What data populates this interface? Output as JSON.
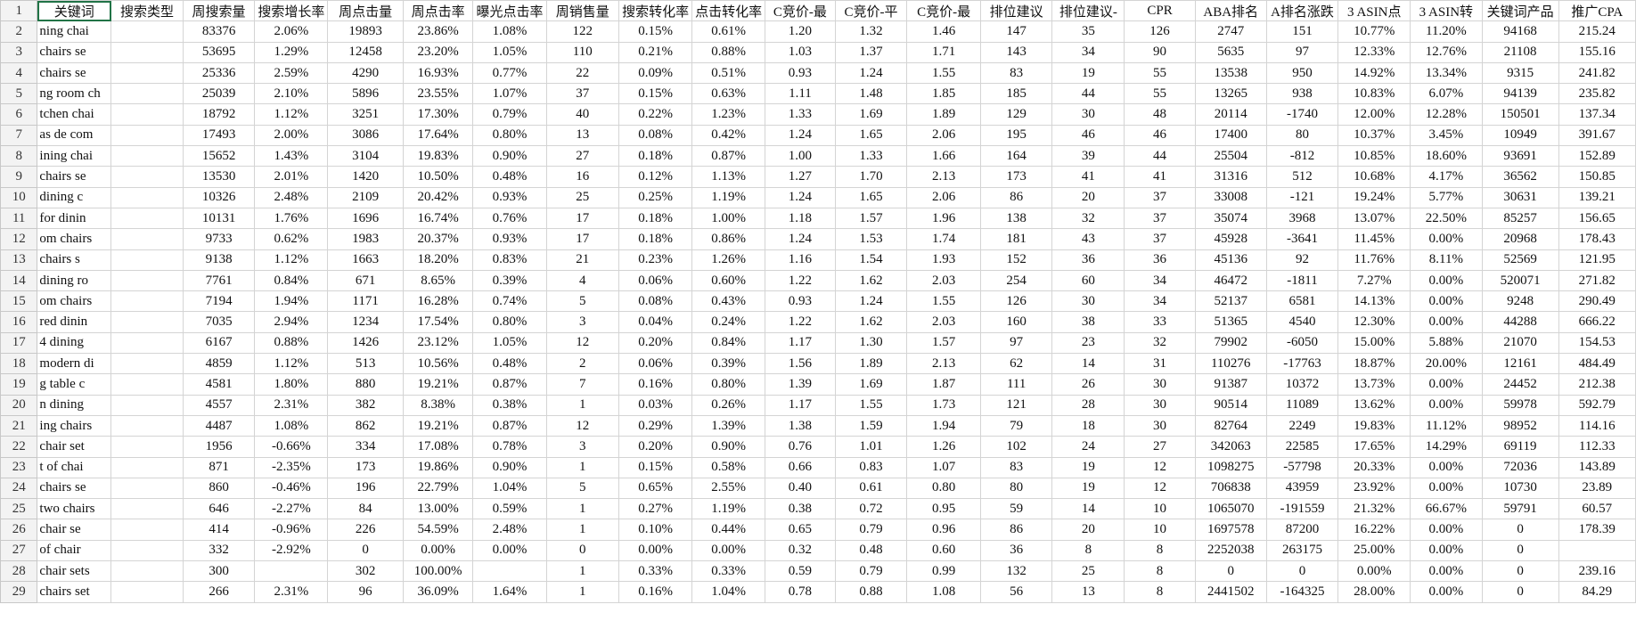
{
  "sheet": {
    "row_numbers": [
      1,
      2,
      3,
      4,
      5,
      6,
      7,
      8,
      9,
      10,
      11,
      12,
      13,
      14,
      15,
      16,
      17,
      18,
      19,
      20,
      21,
      22,
      23,
      24,
      25,
      26,
      27,
      28,
      29
    ],
    "columns": [
      "关键词",
      "搜索类型",
      "周搜索量",
      "搜索增长率",
      "周点击量",
      "周点击率",
      "曝光点击率",
      "周销售量",
      "搜索转化率",
      "点击转化率",
      "C竞价-最",
      "C竞价-平",
      "C竞价-最",
      "排位建议",
      "排位建议-",
      "CPR",
      "ABA排名",
      "A排名涨跌",
      "3 ASIN点",
      "3 ASIN转",
      "关键词产品",
      "推广CPA"
    ],
    "rows": [
      [
        "ning chai",
        null,
        "83376",
        "2.06%",
        "19893",
        "23.86%",
        "1.08%",
        "122",
        "0.15%",
        "0.61%",
        "1.20",
        "1.32",
        "1.46",
        "147",
        "35",
        "126",
        "2747",
        "151",
        "10.77%",
        "11.20%",
        "94168",
        "215.24"
      ],
      [
        " chairs se",
        null,
        "53695",
        "1.29%",
        "12458",
        "23.20%",
        "1.05%",
        "110",
        "0.21%",
        "0.88%",
        "1.03",
        "1.37",
        "1.71",
        "143",
        "34",
        "90",
        "5635",
        "97",
        "12.33%",
        "12.76%",
        "21108",
        "155.16"
      ],
      [
        " chairs se",
        null,
        "25336",
        "2.59%",
        "4290",
        "16.93%",
        "0.77%",
        "22",
        "0.09%",
        "0.51%",
        "0.93",
        "1.24",
        "1.55",
        "83",
        "19",
        "55",
        "13538",
        "950",
        "14.92%",
        "13.34%",
        "9315",
        "241.82"
      ],
      [
        "ng room ch",
        null,
        "25039",
        "2.10%",
        "5896",
        "23.55%",
        "1.07%",
        "37",
        "0.15%",
        "0.63%",
        "1.11",
        "1.48",
        "1.85",
        "185",
        "44",
        "55",
        "13265",
        "938",
        "10.83%",
        "6.07%",
        "94139",
        "235.82"
      ],
      [
        "tchen chai",
        null,
        "18792",
        "1.12%",
        "3251",
        "17.30%",
        "0.79%",
        "40",
        "0.22%",
        "1.23%",
        "1.33",
        "1.69",
        "1.89",
        "129",
        "30",
        "48",
        "20114",
        "-1740",
        "12.00%",
        "12.28%",
        "150501",
        "137.34"
      ],
      [
        "as de com",
        null,
        "17493",
        "2.00%",
        "3086",
        "17.64%",
        "0.80%",
        "13",
        "0.08%",
        "0.42%",
        "1.24",
        "1.65",
        "2.06",
        "195",
        "46",
        "46",
        "17400",
        "80",
        "10.37%",
        "3.45%",
        "10949",
        "391.67"
      ],
      [
        "ining chai",
        null,
        "15652",
        "1.43%",
        "3104",
        "19.83%",
        "0.90%",
        "27",
        "0.18%",
        "0.87%",
        "1.00",
        "1.33",
        "1.66",
        "164",
        "39",
        "44",
        "25504",
        "-812",
        "10.85%",
        "18.60%",
        "93691",
        "152.89"
      ],
      [
        " chairs se",
        null,
        "13530",
        "2.01%",
        "1420",
        "10.50%",
        "0.48%",
        "16",
        "0.12%",
        "1.13%",
        "1.27",
        "1.70",
        "2.13",
        "173",
        "41",
        "41",
        "31316",
        "512",
        "10.68%",
        "4.17%",
        "36562",
        "150.85"
      ],
      [
        " dining c",
        null,
        "10326",
        "2.48%",
        "2109",
        "20.42%",
        "0.93%",
        "25",
        "0.25%",
        "1.19%",
        "1.24",
        "1.65",
        "2.06",
        "86",
        "20",
        "37",
        "33008",
        "-121",
        "19.24%",
        "5.77%",
        "30631",
        "139.21"
      ],
      [
        " for dinin",
        null,
        "10131",
        "1.76%",
        "1696",
        "16.74%",
        "0.76%",
        "17",
        "0.18%",
        "1.00%",
        "1.18",
        "1.57",
        "1.96",
        "138",
        "32",
        "37",
        "35074",
        "3968",
        "13.07%",
        "22.50%",
        "85257",
        "156.65"
      ],
      [
        "om chairs",
        null,
        "9733",
        "0.62%",
        "1983",
        "20.37%",
        "0.93%",
        "17",
        "0.18%",
        "0.86%",
        "1.24",
        "1.53",
        "1.74",
        "181",
        "43",
        "37",
        "45928",
        "-3641",
        "11.45%",
        "0.00%",
        "20968",
        "178.43"
      ],
      [
        " chairs s",
        null,
        "9138",
        "1.12%",
        "1663",
        "18.20%",
        "0.83%",
        "21",
        "0.23%",
        "1.26%",
        "1.16",
        "1.54",
        "1.93",
        "152",
        "36",
        "36",
        "45136",
        "92",
        "11.76%",
        "8.11%",
        "52569",
        "121.95"
      ],
      [
        " dining ro",
        null,
        "7761",
        "0.84%",
        "671",
        "8.65%",
        "0.39%",
        "4",
        "0.06%",
        "0.60%",
        "1.22",
        "1.62",
        "2.03",
        "254",
        "60",
        "34",
        "46472",
        "-1811",
        "7.27%",
        "0.00%",
        "520071",
        "271.82"
      ],
      [
        "om chairs",
        null,
        "7194",
        "1.94%",
        "1171",
        "16.28%",
        "0.74%",
        "5",
        "0.08%",
        "0.43%",
        "0.93",
        "1.24",
        "1.55",
        "126",
        "30",
        "34",
        "52137",
        "6581",
        "14.13%",
        "0.00%",
        "9248",
        "290.49"
      ],
      [
        "red dinin",
        null,
        "7035",
        "2.94%",
        "1234",
        "17.54%",
        "0.80%",
        "3",
        "0.04%",
        "0.24%",
        "1.22",
        "1.62",
        "2.03",
        "160",
        "38",
        "33",
        "51365",
        "4540",
        "12.30%",
        "0.00%",
        "44288",
        "666.22"
      ],
      [
        " 4 dining",
        null,
        "6167",
        "0.88%",
        "1426",
        "23.12%",
        "1.05%",
        "12",
        "0.20%",
        "0.84%",
        "1.17",
        "1.30",
        "1.57",
        "97",
        "23",
        "32",
        "79902",
        "-6050",
        "15.00%",
        "5.88%",
        "21070",
        "154.53"
      ],
      [
        " modern di",
        null,
        "4859",
        "1.12%",
        "513",
        "10.56%",
        "0.48%",
        "2",
        "0.06%",
        "0.39%",
        "1.56",
        "1.89",
        "2.13",
        "62",
        "14",
        "31",
        "110276",
        "-17763",
        "18.87%",
        "20.00%",
        "12161",
        "484.49"
      ],
      [
        "g table c",
        null,
        "4581",
        "1.80%",
        "880",
        "19.21%",
        "0.87%",
        "7",
        "0.16%",
        "0.80%",
        "1.39",
        "1.69",
        "1.87",
        "111",
        "26",
        "30",
        "91387",
        "10372",
        "13.73%",
        "0.00%",
        "24452",
        "212.38"
      ],
      [
        "n dining",
        null,
        "4557",
        "2.31%",
        "382",
        "8.38%",
        "0.38%",
        "1",
        "0.03%",
        "0.26%",
        "1.17",
        "1.55",
        "1.73",
        "121",
        "28",
        "30",
        "90514",
        "11089",
        "13.62%",
        "0.00%",
        "59978",
        "592.79"
      ],
      [
        "ing chairs",
        null,
        "4487",
        "1.08%",
        "862",
        "19.21%",
        "0.87%",
        "12",
        "0.29%",
        "1.39%",
        "1.38",
        "1.59",
        "1.94",
        "79",
        "18",
        "30",
        "82764",
        "2249",
        "19.83%",
        "11.12%",
        "98952",
        "114.16"
      ],
      [
        "chair set",
        null,
        "1956",
        "-0.66%",
        "334",
        "17.08%",
        "0.78%",
        "3",
        "0.20%",
        "0.90%",
        "0.76",
        "1.01",
        "1.26",
        "102",
        "24",
        "27",
        "342063",
        "22585",
        "17.65%",
        "14.29%",
        "69119",
        "112.33"
      ],
      [
        "t of chai",
        null,
        "871",
        "-2.35%",
        "173",
        "19.86%",
        "0.90%",
        "1",
        "0.15%",
        "0.58%",
        "0.66",
        "0.83",
        "1.07",
        "83",
        "19",
        "12",
        "1098275",
        "-57798",
        "20.33%",
        "0.00%",
        "72036",
        "143.89"
      ],
      [
        "chairs se",
        null,
        "860",
        "-0.46%",
        "196",
        "22.79%",
        "1.04%",
        "5",
        "0.65%",
        "2.55%",
        "0.40",
        "0.61",
        "0.80",
        "80",
        "19",
        "12",
        "706838",
        "43959",
        "23.92%",
        "0.00%",
        "10730",
        "23.89"
      ],
      [
        "two chairs",
        null,
        "646",
        "-2.27%",
        "84",
        "13.00%",
        "0.59%",
        "1",
        "0.27%",
        "1.19%",
        "0.38",
        "0.72",
        "0.95",
        "59",
        "14",
        "10",
        "1065070",
        "-191559",
        "21.32%",
        "66.67%",
        "59791",
        "60.57"
      ],
      [
        " chair se",
        null,
        "414",
        "-0.96%",
        "226",
        "54.59%",
        "2.48%",
        "1",
        "0.10%",
        "0.44%",
        "0.65",
        "0.79",
        "0.96",
        "86",
        "20",
        "10",
        "1697578",
        "87200",
        "16.22%",
        "0.00%",
        "0",
        "178.39"
      ],
      [
        " of chair",
        null,
        "332",
        "-2.92%",
        "0",
        "0.00%",
        "0.00%",
        "0",
        "0.00%",
        "0.00%",
        "0.32",
        "0.48",
        "0.60",
        "36",
        "8",
        "8",
        "2252038",
        "263175",
        "25.00%",
        "0.00%",
        "0",
        null
      ],
      [
        "chair sets",
        null,
        "300",
        null,
        "302",
        "100.00%",
        null,
        "1",
        "0.33%",
        "0.33%",
        "0.59",
        "0.79",
        "0.99",
        "132",
        "25",
        "8",
        "0",
        "0",
        "0.00%",
        "0.00%",
        "0",
        "239.16"
      ],
      [
        "chairs set",
        null,
        "266",
        "2.31%",
        "96",
        "36.09%",
        "1.64%",
        "1",
        "0.16%",
        "1.04%",
        "0.78",
        "0.88",
        "1.08",
        "56",
        "13",
        "8",
        "2441502",
        "-164325",
        "28.00%",
        "0.00%",
        "0",
        "84.29"
      ]
    ]
  }
}
